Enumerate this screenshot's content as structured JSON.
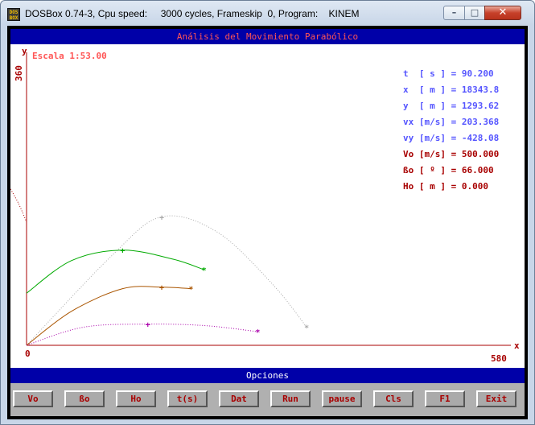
{
  "window": {
    "title": "DOSBox 0.74-3, Cpu speed:     3000 cycles, Frameskip  0, Program:    KINEM",
    "icon_text": "DOS BOX",
    "controls": {
      "minimize_icon": "–",
      "maximize_icon": "□",
      "close_icon": "✕"
    }
  },
  "app": {
    "header": "Análisis del Movimiento Parabólico",
    "scale_label": "Escala 1:53.00",
    "options_label": "Opciones"
  },
  "readouts": [
    {
      "label": "t  [ s ] =",
      "value": "90.200",
      "color": "#5555ff"
    },
    {
      "label": "x  [ m ] =",
      "value": "18343.8",
      "color": "#5555ff"
    },
    {
      "label": "y  [ m ] =",
      "value": "1293.62",
      "color": "#5555ff"
    },
    {
      "label": "vx [m/s] =",
      "value": "203.368",
      "color": "#5555ff"
    },
    {
      "label": "vy [m/s] =",
      "value": "-428.08",
      "color": "#5555ff"
    },
    {
      "label": "Vo [m/s] =",
      "value": "500.000",
      "color": "#a80000"
    },
    {
      "label": "ßo [ º ] =",
      "value": "66.000",
      "color": "#a80000"
    },
    {
      "label": "Ho [ m ] =",
      "value": "0.000",
      "color": "#a80000"
    }
  ],
  "buttons": [
    {
      "name": "vo-button",
      "label": "Vo"
    },
    {
      "name": "beta-button",
      "label": "ßo"
    },
    {
      "name": "ho-button",
      "label": "Ho"
    },
    {
      "name": "time-button",
      "label": "t(s)"
    },
    {
      "name": "dat-button",
      "label": "Dat"
    },
    {
      "name": "run-button",
      "label": "Run"
    },
    {
      "name": "pause-button",
      "label": "pause"
    },
    {
      "name": "cls-button",
      "label": "Cls"
    },
    {
      "name": "f1-button",
      "label": "F1"
    },
    {
      "name": "exit-button",
      "label": "Exit"
    }
  ],
  "chart_data": {
    "type": "line",
    "title": "Análisis del Movimiento Parabólico",
    "xlabel": "x",
    "ylabel": "y",
    "xlim": [
      0,
      580
    ],
    "ylim": [
      0,
      360
    ],
    "x_ticks": [
      "0",
      "580"
    ],
    "y_ticks": [
      "360"
    ],
    "grid": false,
    "series": [
      {
        "color": "#aaaaaa",
        "style": "dotted",
        "points": [
          [
            0,
            0
          ],
          [
            105,
            119
          ],
          [
            166,
            170
          ],
          [
            234,
            150
          ],
          [
            302,
            81
          ],
          [
            344,
            24
          ]
        ],
        "apex": [
          166,
          170
        ],
        "end": [
          344,
          24
        ]
      },
      {
        "color": "#00aa00",
        "style": "solid",
        "points": [
          [
            0,
            69
          ],
          [
            55,
            112
          ],
          [
            118,
            126
          ],
          [
            180,
            114
          ],
          [
            218,
            100
          ]
        ],
        "apex": [
          118,
          126
        ],
        "end": [
          218,
          100
        ]
      },
      {
        "color": "#aa5500",
        "style": "solid",
        "points": [
          [
            0,
            0
          ],
          [
            55,
            45
          ],
          [
            118,
            75
          ],
          [
            166,
            77
          ],
          [
            202,
            75
          ]
        ],
        "apex": [
          166,
          77
        ],
        "end": [
          202,
          75
        ]
      },
      {
        "color": "#aa00aa",
        "style": "dotted",
        "points": [
          [
            0,
            0
          ],
          [
            70,
            24
          ],
          [
            149,
            28
          ],
          [
            220,
            26
          ],
          [
            284,
            18
          ]
        ],
        "apex": [
          149,
          28
        ],
        "end": [
          284,
          18
        ]
      },
      {
        "color": "#a80000",
        "style": "dotted",
        "points": [
          [
            -24,
            215
          ],
          [
            -10,
            188
          ],
          [
            0,
            163
          ]
        ],
        "apex": null,
        "end": null
      }
    ]
  }
}
